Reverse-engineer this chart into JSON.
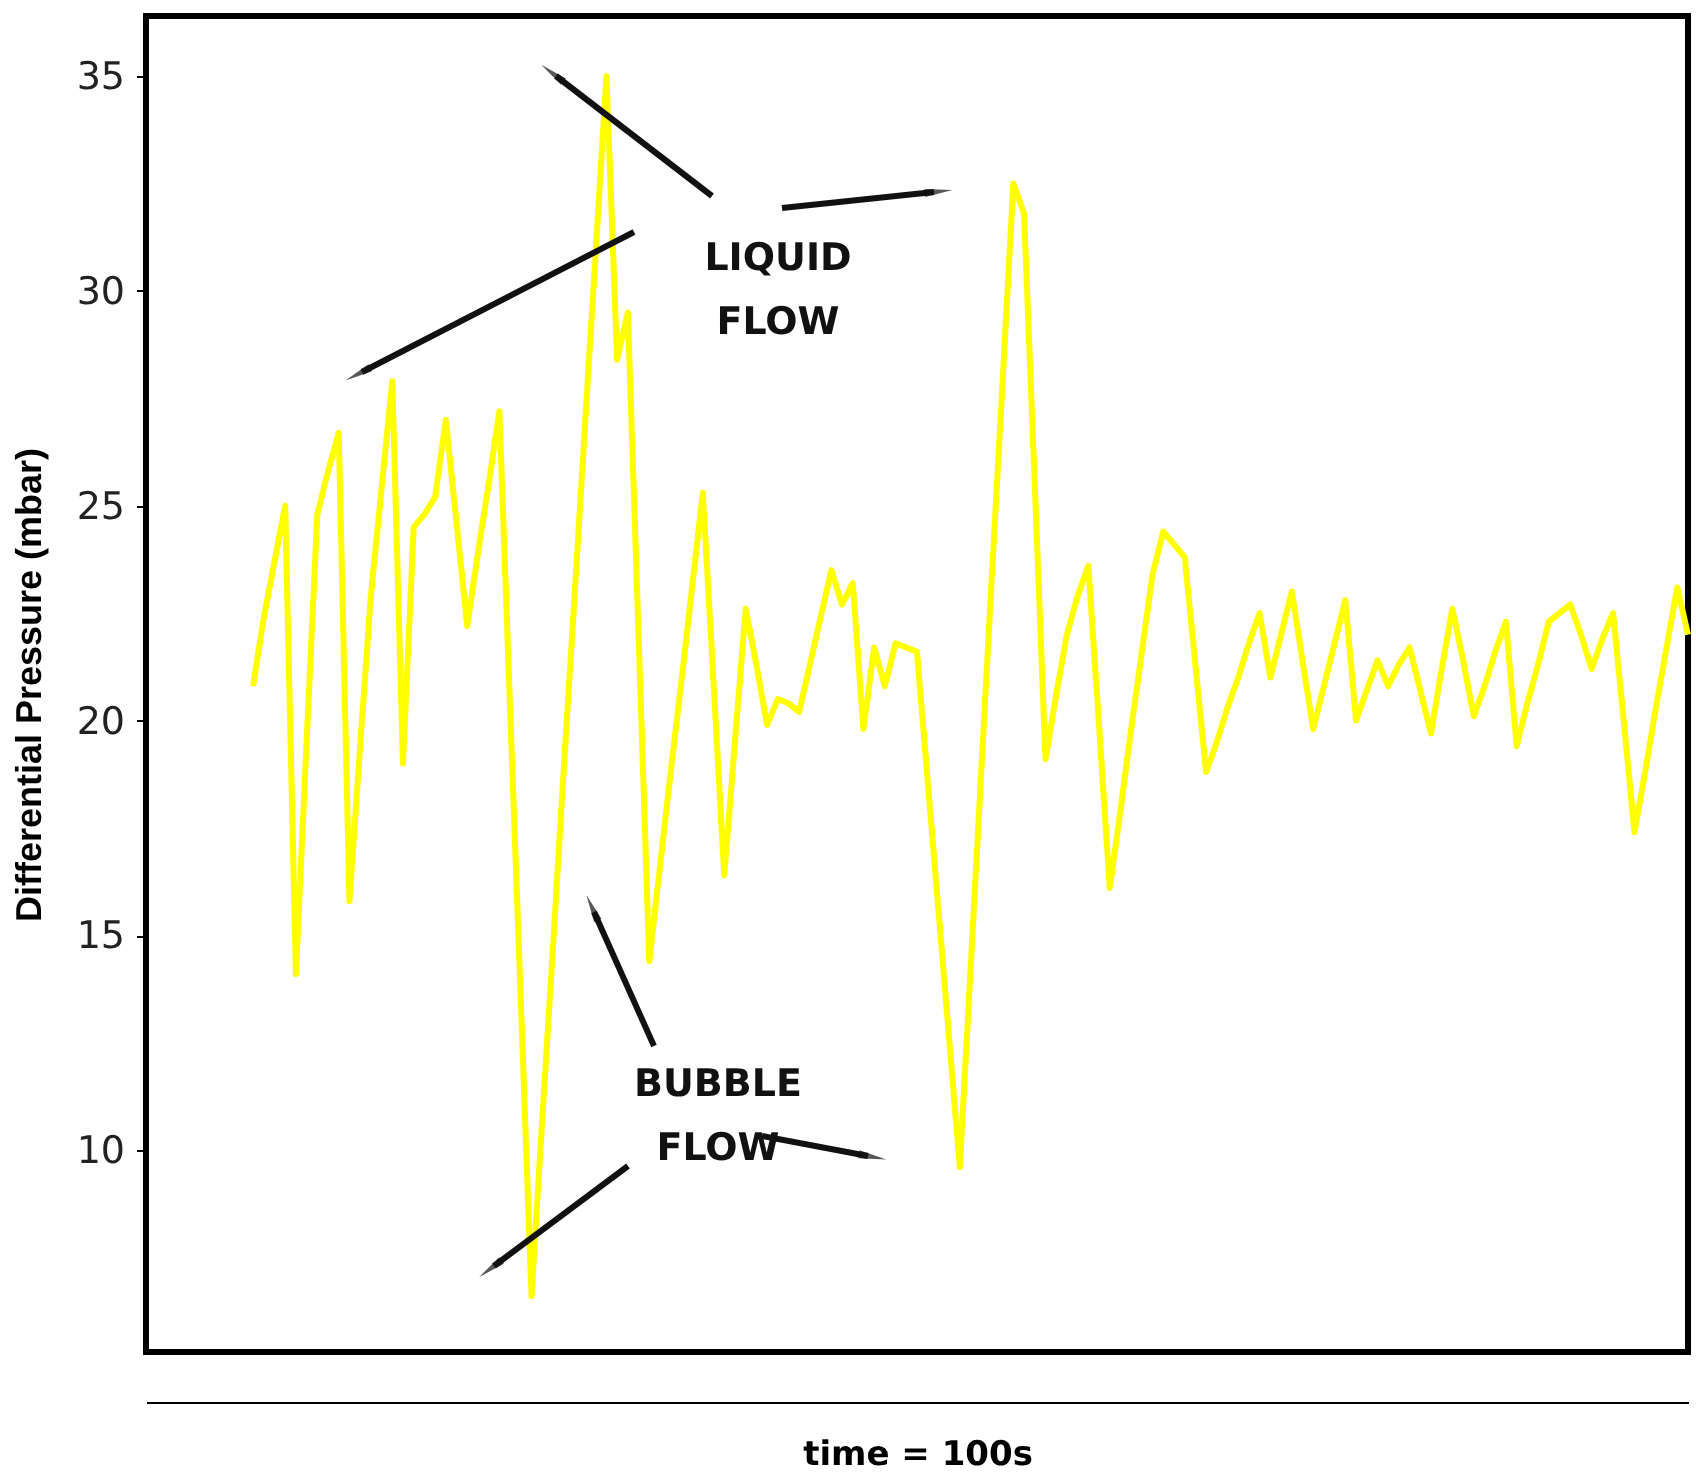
{
  "chart_data": {
    "type": "line",
    "xlabel": "time = 100s",
    "ylabel": "Differential Pressure (mbar)",
    "categories": [
      null,
      null,
      null,
      null,
      null,
      null,
      null,
      null,
      null,
      null,
      null,
      null,
      null,
      null,
      null,
      null,
      null,
      null,
      null,
      null,
      null,
      null,
      null,
      null,
      null,
      null,
      null,
      null,
      null,
      null,
      null,
      null,
      null,
      null,
      null,
      null,
      null,
      null,
      null,
      null,
      null,
      null,
      null,
      null,
      null,
      null,
      null,
      null,
      null,
      null,
      null,
      null,
      null,
      null,
      null,
      null,
      null,
      null,
      null,
      null,
      null,
      null,
      null,
      null,
      null,
      null,
      null,
      null,
      null,
      null,
      null,
      null,
      null,
      null,
      null,
      null,
      null,
      null,
      null,
      null,
      null,
      null,
      null,
      null,
      null,
      null,
      null,
      null,
      null,
      null,
      null,
      null,
      null,
      null,
      null,
      null,
      null,
      null,
      null,
      null,
      null,
      null,
      null,
      null,
      null,
      null,
      null,
      null,
      null,
      null,
      null,
      null,
      null,
      null,
      null,
      null,
      null,
      null,
      null,
      null,
      null,
      null,
      null,
      null,
      null,
      null,
      null,
      null,
      null,
      null,
      null,
      null,
      null,
      null,
      null,
      null,
      null,
      null,
      null,
      null,
      null,
      null,
      null,
      null,
      null
    ],
    "series": [
      {
        "color": "#ffff00",
        "values": [
          null,
          null,
          null,
          null,
          null,
          null,
          null,
          null,
          null,
          null,
          20.8,
          22.4,
          23.7,
          25.0,
          14.1,
          19.5,
          24.8,
          25.8,
          26.7,
          15.8,
          19.4,
          22.9,
          25.4,
          27.9,
          19.0,
          24.5,
          24.8,
          25.2,
          27.0,
          24.6,
          22.2,
          23.9,
          25.5,
          27.2,
          20.3,
          13.5,
          6.6,
          10.7,
          14.7,
          18.8,
          22.8,
          26.9,
          30.9,
          35.0,
          28.4,
          29.5,
          22.0,
          14.4,
          16.6,
          18.8,
          20.9,
          23.1,
          25.3,
          20.9,
          16.4,
          19.5,
          22.6,
          21.3,
          19.9,
          20.5,
          20.4,
          20.2,
          21.3,
          22.4,
          23.5,
          22.7,
          23.2,
          19.8,
          21.7,
          20.8,
          21.8,
          21.7,
          21.6,
          18.6,
          15.6,
          12.6,
          9.6,
          14.2,
          18.8,
          23.4,
          27.9,
          32.5,
          31.8,
          25.5,
          19.1,
          20.6,
          22.0,
          22.9,
          23.6,
          19.9,
          16.1,
          17.9,
          19.8,
          21.6,
          23.4,
          24.4,
          24.1,
          23.8,
          21.3,
          18.8,
          19.5,
          20.3,
          21.0,
          21.8,
          22.5,
          21.0,
          22.0,
          23.0,
          21.4,
          19.8,
          20.8,
          21.8,
          22.8,
          20.0,
          20.7,
          21.4,
          20.8,
          21.3,
          21.7,
          20.7,
          19.7,
          21.2,
          22.6,
          21.4,
          20.1,
          20.8,
          21.6,
          22.3,
          19.4,
          20.4,
          21.3,
          22.3,
          22.5,
          22.7,
          22.0,
          21.2,
          21.9,
          22.5,
          20.0,
          17.4,
          18.8,
          20.3,
          21.7,
          23.1,
          22.0
        ]
      }
    ],
    "ylim": [
      5.3,
      36.4
    ],
    "yticks": [
      10,
      15,
      20,
      25,
      30,
      35
    ],
    "tick_labels": "y",
    "grid": false,
    "marker": "none",
    "line_style": "solid",
    "annotations": [
      "LIQUID\nFLOW",
      "BUBBLE\nFLOW"
    ]
  }
}
